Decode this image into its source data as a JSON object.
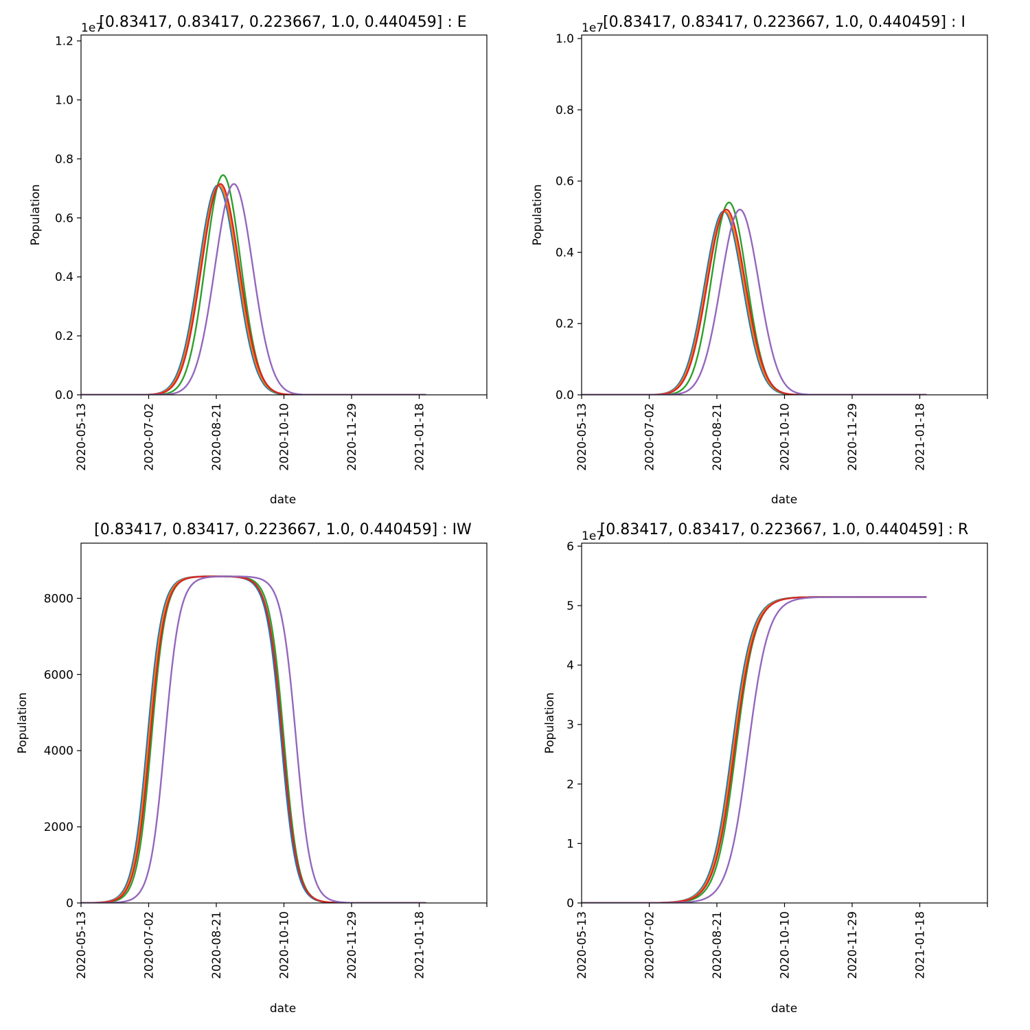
{
  "figure": {
    "xlabel": "date",
    "ylabel": "Population",
    "x_tick_labels": [
      "2020-05-13",
      "2020-07-02",
      "2020-08-21",
      "2020-10-10",
      "2020-11-29",
      "2021-01-18"
    ],
    "series_colors": [
      "#1f77b4",
      "#ff7f0e",
      "#2ca02c",
      "#d62728",
      "#9467bd"
    ]
  },
  "chart_data": [
    {
      "type": "line",
      "title": "[0.83417, 0.83417, 0.223667, 1.0, 0.440459] : E",
      "xlabel": "date",
      "ylabel": "Population",
      "x_axis": "date",
      "xlim": [
        "2020-05-13",
        "2021-03-09"
      ],
      "x_ticks": [
        "2020-05-13",
        "2020-07-02",
        "2020-08-21",
        "2020-10-10",
        "2020-11-29",
        "2021-01-18",
        "2021-03-09"
      ],
      "x_tick_labels": [
        "2020-05-13",
        "2020-07-02",
        "2020-08-21",
        "2020-10-10",
        "2020-11-29",
        "2021-01-18",
        ""
      ],
      "ylim": [
        0,
        12200000.0
      ],
      "y_ticks": [
        0,
        2000000,
        4000000,
        6000000,
        8000000,
        10000000,
        12000000
      ],
      "y_tick_labels": [
        "0.0",
        "0.2",
        "0.4",
        "0.6",
        "0.8",
        "1.0",
        "1.2"
      ],
      "y_offset_label": "1e7",
      "grid": false,
      "series_shape": "gaussian",
      "x_end": "2021-01-23",
      "series": [
        {
          "color": "#1f77b4",
          "peak_date": "2020-08-22",
          "peak": 7100000,
          "width_days": 14
        },
        {
          "color": "#ff7f0e",
          "peak_date": "2020-08-23",
          "peak": 7100000,
          "width_days": 14
        },
        {
          "color": "#2ca02c",
          "peak_date": "2020-08-26",
          "peak": 7450000,
          "width_days": 13
        },
        {
          "color": "#d62728",
          "peak_date": "2020-08-24",
          "peak": 7150000,
          "width_days": 14
        },
        {
          "color": "#9467bd",
          "peak_date": "2020-09-03",
          "peak": 7150000,
          "width_days": 14
        }
      ]
    },
    {
      "type": "line",
      "title": "[0.83417, 0.83417, 0.223667, 1.0, 0.440459] : I",
      "xlabel": "date",
      "ylabel": "Population",
      "x_axis": "date",
      "xlim": [
        "2020-05-13",
        "2021-03-09"
      ],
      "x_ticks": [
        "2020-05-13",
        "2020-07-02",
        "2020-08-21",
        "2020-10-10",
        "2020-11-29",
        "2021-01-18",
        "2021-03-09"
      ],
      "x_tick_labels": [
        "2020-05-13",
        "2020-07-02",
        "2020-08-21",
        "2020-10-10",
        "2020-11-29",
        "2021-01-18",
        ""
      ],
      "ylim": [
        0,
        10100000.0
      ],
      "y_ticks": [
        0,
        2000000,
        4000000,
        6000000,
        8000000,
        10000000
      ],
      "y_tick_labels": [
        "0.0",
        "0.2",
        "0.4",
        "0.6",
        "0.8",
        "1.0"
      ],
      "y_offset_label": "1e7",
      "grid": false,
      "series_shape": "gaussian",
      "x_end": "2021-01-23",
      "series": [
        {
          "color": "#1f77b4",
          "peak_date": "2020-08-26",
          "peak": 5150000,
          "width_days": 14
        },
        {
          "color": "#ff7f0e",
          "peak_date": "2020-08-27",
          "peak": 5150000,
          "width_days": 14
        },
        {
          "color": "#2ca02c",
          "peak_date": "2020-08-30",
          "peak": 5400000,
          "width_days": 13
        },
        {
          "color": "#d62728",
          "peak_date": "2020-08-28",
          "peak": 5200000,
          "width_days": 14
        },
        {
          "color": "#9467bd",
          "peak_date": "2020-09-07",
          "peak": 5200000,
          "width_days": 14
        }
      ]
    },
    {
      "type": "line",
      "title": "[0.83417, 0.83417, 0.223667, 1.0, 0.440459] : IW",
      "xlabel": "date",
      "ylabel": "Population",
      "x_axis": "date",
      "xlim": [
        "2020-05-13",
        "2021-03-09"
      ],
      "x_ticks": [
        "2020-05-13",
        "2020-07-02",
        "2020-08-21",
        "2020-10-10",
        "2020-11-29",
        "2021-01-18",
        "2021-03-09"
      ],
      "x_tick_labels": [
        "2020-05-13",
        "2020-07-02",
        "2020-08-21",
        "2020-10-10",
        "2020-11-29",
        "2021-01-18",
        ""
      ],
      "ylim": [
        0,
        9450
      ],
      "y_ticks": [
        0,
        2000,
        4000,
        6000,
        8000
      ],
      "y_tick_labels": [
        "0",
        "2000",
        "4000",
        "6000",
        "8000"
      ],
      "y_offset_label": "",
      "grid": false,
      "series_shape": "plateau",
      "x_end": "2021-01-23",
      "series": [
        {
          "color": "#1f77b4",
          "rise_mid": "2020-07-01",
          "fall_mid": "2020-10-08",
          "plateau": 8580,
          "scale_days": 5.5
        },
        {
          "color": "#ff7f0e",
          "rise_mid": "2020-07-02",
          "fall_mid": "2020-10-09",
          "plateau": 8580,
          "scale_days": 5.5
        },
        {
          "color": "#2ca02c",
          "rise_mid": "2020-07-04",
          "fall_mid": "2020-10-10",
          "plateau": 8580,
          "scale_days": 5.3
        },
        {
          "color": "#d62728",
          "rise_mid": "2020-07-03",
          "fall_mid": "2020-10-09",
          "plateau": 8580,
          "scale_days": 5.5
        },
        {
          "color": "#9467bd",
          "rise_mid": "2020-07-14",
          "fall_mid": "2020-10-19",
          "plateau": 8580,
          "scale_days": 5.5
        }
      ]
    },
    {
      "type": "line",
      "title": "[0.83417, 0.83417, 0.223667, 1.0, 0.440459] : R",
      "xlabel": "date",
      "ylabel": "Population",
      "x_axis": "date",
      "xlim": [
        "2020-05-13",
        "2021-03-09"
      ],
      "x_ticks": [
        "2020-05-13",
        "2020-07-02",
        "2020-08-21",
        "2020-10-10",
        "2020-11-29",
        "2021-01-18",
        "2021-03-09"
      ],
      "x_tick_labels": [
        "2020-05-13",
        "2020-07-02",
        "2020-08-21",
        "2020-10-10",
        "2020-11-29",
        "2021-01-18",
        ""
      ],
      "ylim": [
        0,
        60500000.0
      ],
      "y_ticks": [
        0,
        10000000,
        20000000,
        30000000,
        40000000,
        50000000,
        60000000
      ],
      "y_tick_labels": [
        "0",
        "1",
        "2",
        "3",
        "4",
        "5",
        "6"
      ],
      "y_offset_label": "1e7",
      "grid": false,
      "series_shape": "sigmoid",
      "x_end": "2021-01-23",
      "series": [
        {
          "color": "#1f77b4",
          "mid_date": "2020-09-01",
          "final": 51450000,
          "scale_days": 7.5
        },
        {
          "color": "#ff7f0e",
          "mid_date": "2020-09-02",
          "final": 51450000,
          "scale_days": 7.5
        },
        {
          "color": "#2ca02c",
          "mid_date": "2020-09-04",
          "final": 51450000,
          "scale_days": 7.2
        },
        {
          "color": "#d62728",
          "mid_date": "2020-09-03",
          "final": 51450000,
          "scale_days": 7.5
        },
        {
          "color": "#9467bd",
          "mid_date": "2020-09-13",
          "final": 51450000,
          "scale_days": 7.5
        }
      ]
    }
  ]
}
